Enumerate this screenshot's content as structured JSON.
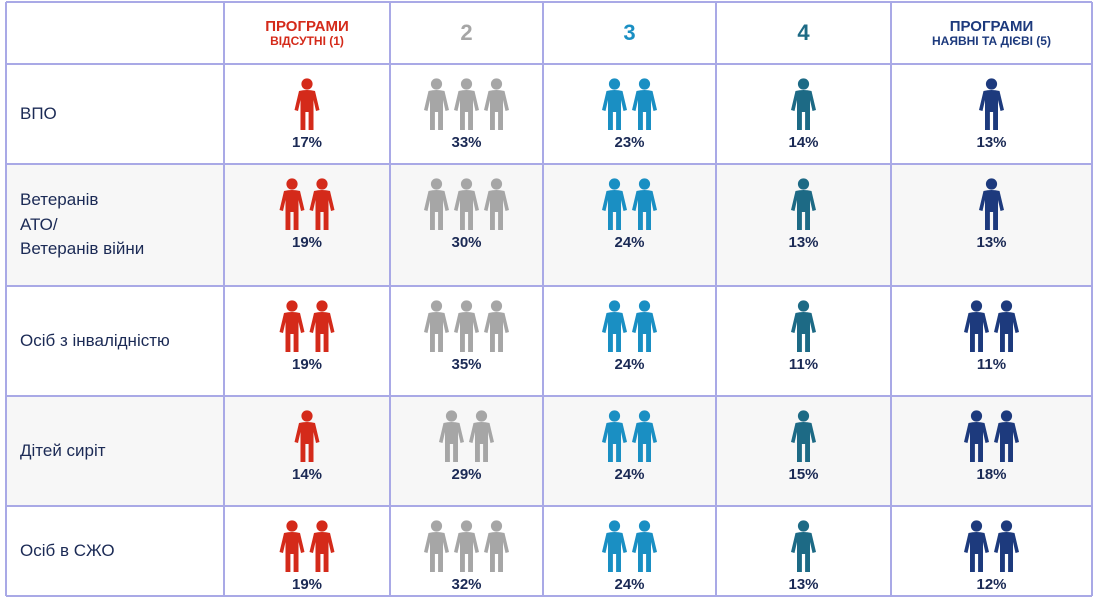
{
  "chart_data": {
    "type": "table",
    "columns": [
      {
        "title": "ПРОГРАМИ",
        "subtitle": "ВІДСУТНІ (1)",
        "color": "#d42a1a"
      },
      {
        "title": "2",
        "subtitle": "",
        "color": "#a6a6a6"
      },
      {
        "title": "3",
        "subtitle": "",
        "color": "#1a8fc3"
      },
      {
        "title": "4",
        "subtitle": "",
        "color": "#1d6a85"
      },
      {
        "title": "ПРОГРАМИ",
        "subtitle": "НАЯВНІ ТА ДІЄВІ (5)",
        "color": "#1d3a7d"
      }
    ],
    "rows": [
      {
        "label": "ВПО",
        "values": [
          "17%",
          "33%",
          "23%",
          "14%",
          "13%"
        ],
        "icons": [
          1,
          3,
          2,
          1,
          1
        ]
      },
      {
        "label": "Ветеранів\n АТО/\nВетеранів війни",
        "values": [
          "19%",
          "30%",
          "24%",
          "13%",
          "13%"
        ],
        "icons": [
          2,
          3,
          2,
          1,
          1
        ]
      },
      {
        "label": "Осіб з інвалідністю",
        "values": [
          "19%",
          "35%",
          "24%",
          "11%",
          "11%"
        ],
        "icons": [
          2,
          3,
          2,
          1,
          2
        ]
      },
      {
        "label": "Дітей сиріт",
        "values": [
          "14%",
          "29%",
          "24%",
          "15%",
          "18%"
        ],
        "icons": [
          1,
          2,
          2,
          1,
          2
        ]
      },
      {
        "label": "Осіб в СЖО",
        "values": [
          "19%",
          "32%",
          "24%",
          "13%",
          "12%"
        ],
        "icons": [
          2,
          3,
          2,
          1,
          2
        ]
      }
    ]
  },
  "colors": {
    "grid_line": "#a9a9e6",
    "header_bg": "#ffffff",
    "odd_row_bg": "#ffffff",
    "even_row_bg": "#f7f7f7",
    "label_color": "#1b2a55"
  },
  "icon_name": "person-icon"
}
